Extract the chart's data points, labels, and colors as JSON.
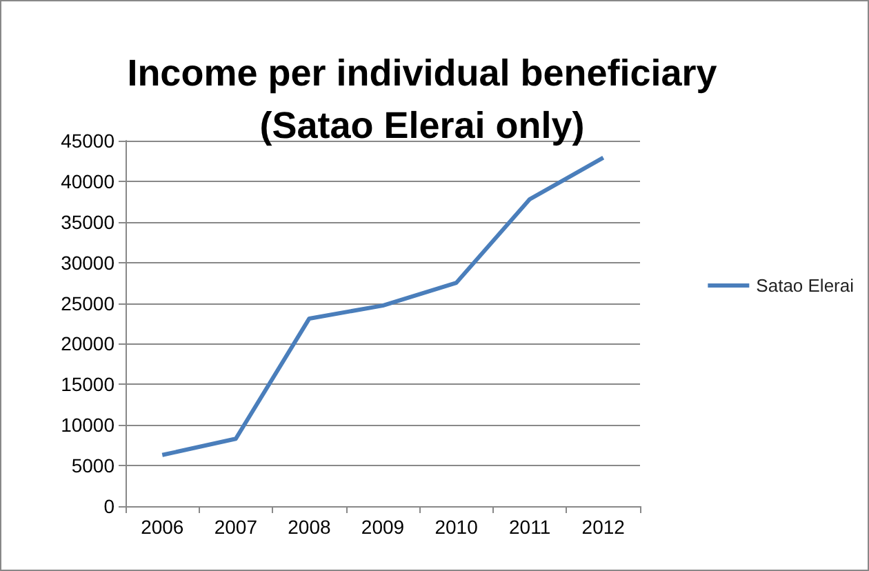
{
  "chart_data": {
    "type": "line",
    "title": "Income per individual beneficiary\n(Satao Elerai only)",
    "categories": [
      "2006",
      "2007",
      "2008",
      "2009",
      "2010",
      "2011",
      "2012"
    ],
    "series": [
      {
        "name": "Satao Elerai",
        "color": "#4a7ebb",
        "values": [
          6300,
          8300,
          23100,
          24700,
          27500,
          37800,
          42900
        ]
      }
    ],
    "ylim": [
      0,
      45000
    ],
    "yticks": [
      0,
      5000,
      10000,
      15000,
      20000,
      25000,
      30000,
      35000,
      40000,
      45000
    ],
    "grid": "y",
    "legend": "right",
    "marker": "none",
    "line_style": "solid"
  }
}
